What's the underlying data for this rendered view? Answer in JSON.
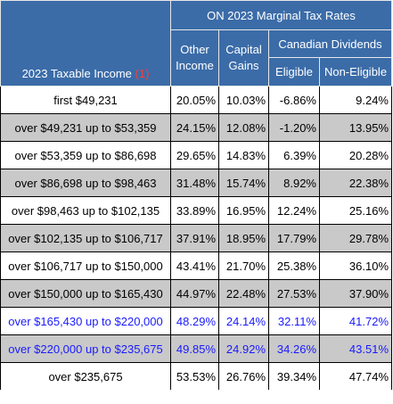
{
  "header": {
    "title": "ON 2023 Marginal Tax Rates",
    "income_label": "2023 Taxable Income",
    "income_footnote": "(1)",
    "other_income": "Other Income",
    "capital_gains": "Capital Gains",
    "canadian_dividends": "Canadian Dividends",
    "eligible": "Eligible",
    "non_eligible": "Non-Eligible"
  },
  "rows": [
    {
      "income": "first $49,231",
      "other": "20.05%",
      "capital": "10.03%",
      "eligible": "-6.86%",
      "non_eligible": "9.24%"
    },
    {
      "income": "over $49,231 up to $53,359",
      "other": "24.15%",
      "capital": "12.08%",
      "eligible": "-1.20%",
      "non_eligible": "13.95%"
    },
    {
      "income": "over $53,359 up to $86,698",
      "other": "29.65%",
      "capital": "14.83%",
      "eligible": "6.39%",
      "non_eligible": "20.28%"
    },
    {
      "income": "over $86,698 up to $98,463",
      "other": "31.48%",
      "capital": "15.74%",
      "eligible": "8.92%",
      "non_eligible": "22.38%"
    },
    {
      "income": "over $98,463 up to $102,135",
      "other": "33.89%",
      "capital": "16.95%",
      "eligible": "12.24%",
      "non_eligible": "25.16%"
    },
    {
      "income": "over $102,135 up to $106,717",
      "other": "37.91%",
      "capital": "18.95%",
      "eligible": "17.79%",
      "non_eligible": "29.78%"
    },
    {
      "income": "over $106,717 up to $150,000",
      "other": "43.41%",
      "capital": "21.70%",
      "eligible": "25.38%",
      "non_eligible": "36.10%"
    },
    {
      "income": "over $150,000 up to $165,430",
      "other": "44.97%",
      "capital": "22.48%",
      "eligible": "27.53%",
      "non_eligible": "37.90%"
    },
    {
      "income": "over $165,430 up to $220,000",
      "other": "48.29%",
      "capital": "24.14%",
      "eligible": "32.11%",
      "non_eligible": "41.72%"
    },
    {
      "income": "over $220,000 up to $235,675",
      "other": "49.85%",
      "capital": "24.92%",
      "eligible": "34.26%",
      "non_eligible": "43.51%"
    },
    {
      "income": "over $235,675",
      "other": "53.53%",
      "capital": "26.76%",
      "eligible": "39.34%",
      "non_eligible": "47.74%"
    }
  ],
  "colors": {
    "header_bg": "#3b6ca8",
    "shaded_row": "#c9c9c9",
    "highlight_text": "#1a1aff",
    "footnote": "#ff3b3b"
  }
}
